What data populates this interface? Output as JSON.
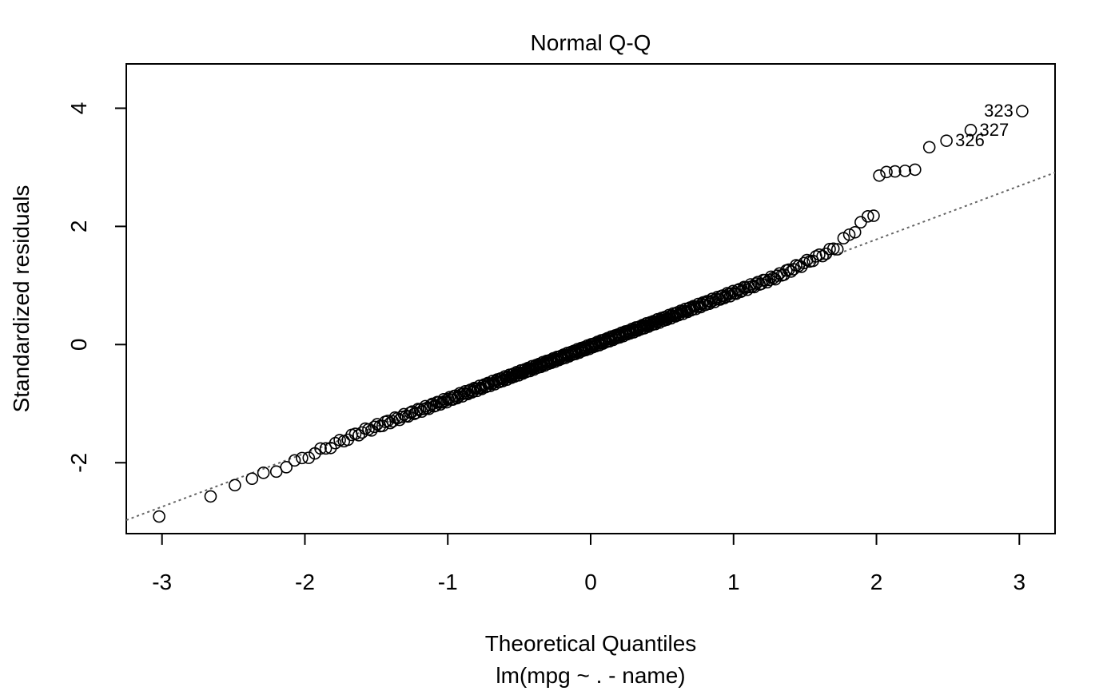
{
  "chart_data": {
    "type": "scatter",
    "title": "Normal Q-Q",
    "xlabel": "Theoretical Quantiles",
    "subtitle": "lm(mpg ~ . - name)",
    "ylabel": "Standardized residuals",
    "xlim": [
      -3.25,
      3.25
    ],
    "ylim": [
      -3.2,
      4.75
    ],
    "x_ticks": [
      -3,
      -2,
      -1,
      0,
      1,
      2,
      3
    ],
    "y_ticks": [
      -2,
      0,
      2,
      4
    ],
    "reference_line": {
      "intercept": -0.03,
      "slope": 0.905,
      "style": "dotted",
      "color": "#666666"
    },
    "n_points": 392,
    "outliers": [
      {
        "x": 3.02,
        "y": 3.95
      },
      {
        "x": 2.66,
        "y": 3.63
      },
      {
        "x": 2.49,
        "y": 3.45
      },
      {
        "x": 2.37,
        "y": 3.34
      },
      {
        "x": 2.27,
        "y": 2.96
      },
      {
        "x": 2.2,
        "y": 2.94
      },
      {
        "x": 2.13,
        "y": 2.93
      },
      {
        "x": 2.07,
        "y": 2.92
      },
      {
        "x": 2.02,
        "y": 2.86
      },
      {
        "x": 1.98,
        "y": 2.18
      },
      {
        "x": 1.94,
        "y": 2.17
      },
      {
        "x": 1.89,
        "y": 2.07
      },
      {
        "x": 1.85,
        "y": 1.9
      },
      {
        "x": 1.81,
        "y": 1.86
      },
      {
        "x": 1.77,
        "y": 1.8
      },
      {
        "x": -2.2,
        "y": -2.15
      },
      {
        "x": -2.29,
        "y": -2.17
      },
      {
        "x": -2.37,
        "y": -2.27
      },
      {
        "x": -2.49,
        "y": -2.38
      },
      {
        "x": -2.66,
        "y": -2.57
      },
      {
        "x": -3.02,
        "y": -2.91
      }
    ],
    "point_labels": [
      {
        "text": "323",
        "x": 3.02,
        "y": 3.95,
        "side": "left"
      },
      {
        "text": "327",
        "x": 2.66,
        "y": 3.63,
        "side": "right"
      },
      {
        "text": "326",
        "x": 2.49,
        "y": 3.45,
        "side": "right"
      }
    ]
  }
}
